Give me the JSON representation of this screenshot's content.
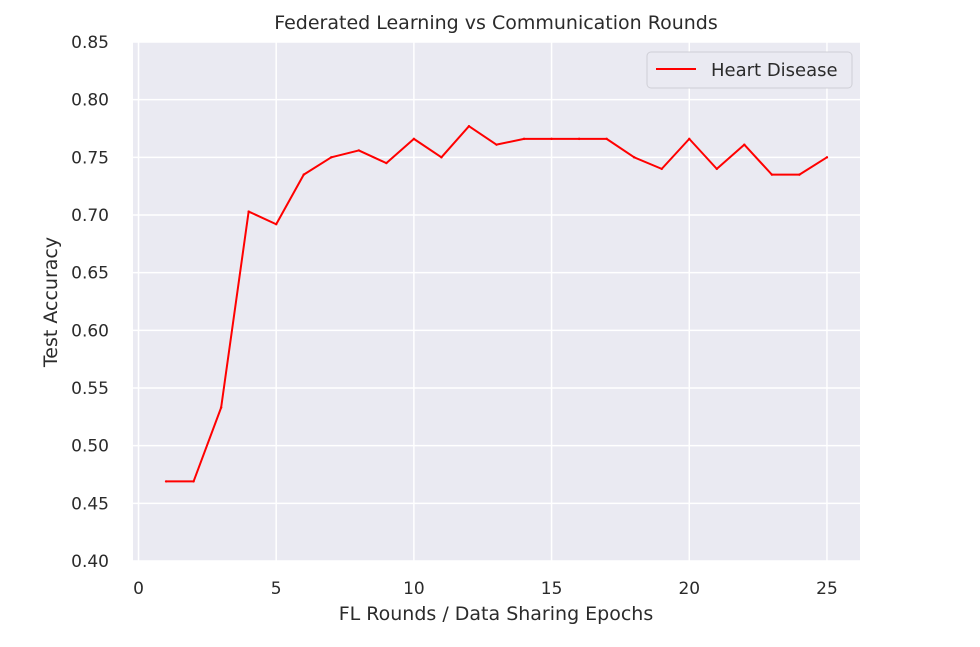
{
  "chart_data": {
    "type": "line",
    "title": "Federated Learning vs Communication Rounds",
    "xlabel": "FL Rounds / Data Sharing Epochs",
    "ylabel": "Test Accuracy",
    "xlim": [
      -0.2,
      26.2
    ],
    "ylim": [
      0.4,
      0.85
    ],
    "xticks": [
      0,
      5,
      10,
      15,
      20,
      25
    ],
    "yticks": [
      0.4,
      0.45,
      0.5,
      0.55,
      0.6,
      0.65,
      0.7,
      0.75,
      0.8,
      0.85
    ],
    "ytick_labels": [
      "0.40",
      "0.45",
      "0.50",
      "0.55",
      "0.60",
      "0.65",
      "0.70",
      "0.75",
      "0.80",
      "0.85"
    ],
    "xtick_labels": [
      "0",
      "5",
      "10",
      "15",
      "20",
      "25"
    ],
    "grid": true,
    "legend_position": "top-right",
    "series": [
      {
        "name": "Heart Disease",
        "color": "#ff0000",
        "x": [
          1,
          2,
          3,
          4,
          5,
          6,
          7,
          8,
          9,
          10,
          11,
          12,
          13,
          14,
          15,
          16,
          17,
          18,
          19,
          20,
          21,
          22,
          23,
          24,
          25
        ],
        "y": [
          0.469,
          0.469,
          0.533,
          0.703,
          0.692,
          0.735,
          0.75,
          0.756,
          0.745,
          0.766,
          0.75,
          0.777,
          0.761,
          0.766,
          0.766,
          0.766,
          0.766,
          0.75,
          0.74,
          0.766,
          0.74,
          0.761,
          0.735,
          0.735,
          0.75
        ]
      }
    ]
  },
  "colors": {
    "plot_background": "#eaeaf2",
    "grid": "#ffffff"
  }
}
